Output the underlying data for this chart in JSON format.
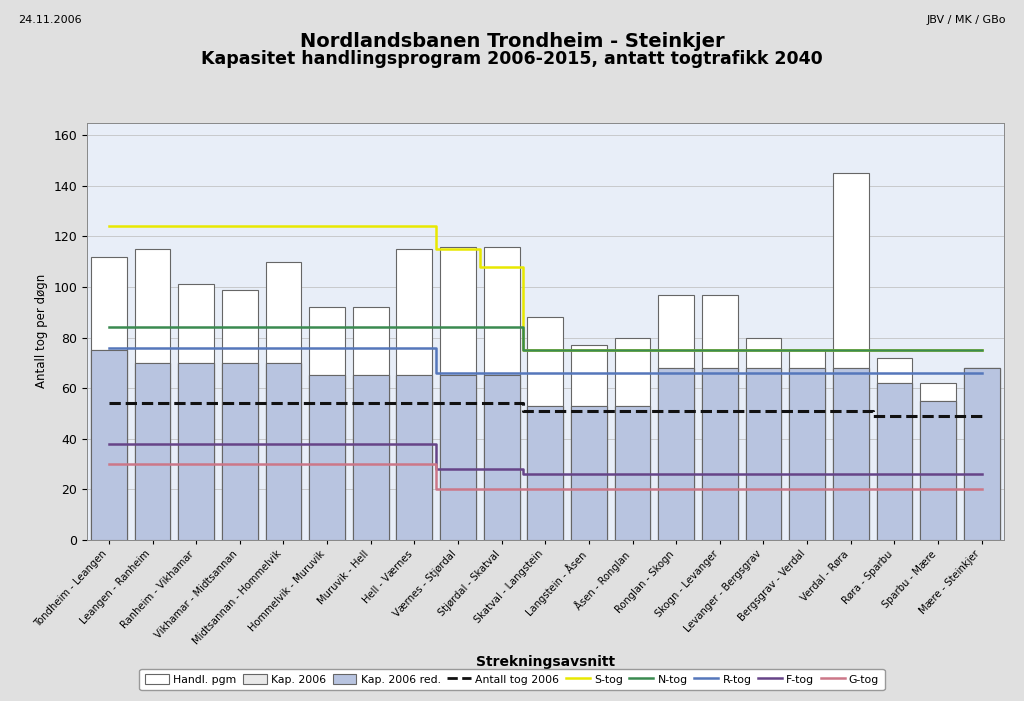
{
  "title_line1": "Nordlandsbanen Trondheim - Steinkjer",
  "title_line2": "Kapasitet handlingsprogram 2006-2015, antatt togtrafikk 2040",
  "date_text": "24.11.2006",
  "ref_text": "JBV / MK / GBo",
  "ylabel": "Antall tog per døgn",
  "xlabel": "Strekningsavsnitt",
  "ylim": [
    0,
    165
  ],
  "yticks": [
    0,
    20,
    40,
    60,
    80,
    100,
    120,
    140,
    160
  ],
  "categories": [
    "Tondheim - Leangen",
    "Leangen - Ranheim",
    "Ranheim - Vikhamar",
    "Vikhamar - Midtsannan",
    "Midtsannan - Hommelvik",
    "Hommelvik - Muruvik",
    "Muruvik - Hell",
    "Hell - Værnes",
    "Værnes - Stjørdal",
    "Stjørdal - Skatval",
    "Skatval - Langstein",
    "Langstein - Åsen",
    "Åsen - Ronglan",
    "Ronglan - Skogn",
    "Skogn - Levanger",
    "Levanger - Bergsgrav",
    "Bergsgrav - Verdal",
    "Verdal - Røra",
    "Røra - Sparbu",
    "Sparbu - Mære",
    "Mære - Steinkjer"
  ],
  "handl_pgm": [
    112,
    115,
    101,
    99,
    110,
    92,
    92,
    115,
    116,
    116,
    88,
    77,
    80,
    97,
    97,
    80,
    75,
    145,
    72,
    62,
    68
  ],
  "kap_2006": [
    75,
    70,
    70,
    70,
    70,
    65,
    65,
    65,
    65,
    65,
    53,
    53,
    53,
    68,
    68,
    68,
    68,
    68,
    62,
    55,
    68
  ],
  "kap_2006_red": [
    75,
    70,
    70,
    70,
    70,
    65,
    65,
    65,
    65,
    65,
    53,
    53,
    53,
    68,
    68,
    68,
    68,
    68,
    62,
    55,
    68
  ],
  "antall_tog_2006": [
    54,
    54,
    54,
    54,
    54,
    54,
    54,
    54,
    54,
    54,
    51,
    51,
    51,
    51,
    51,
    51,
    51,
    51,
    49,
    49,
    49
  ],
  "s_tog": [
    124,
    124,
    124,
    124,
    124,
    124,
    124,
    124,
    115,
    108,
    75,
    75,
    75,
    75,
    75,
    75,
    75,
    75,
    75,
    75,
    75
  ],
  "n_tog": [
    84,
    84,
    84,
    84,
    84,
    84,
    84,
    84,
    84,
    84,
    75,
    75,
    75,
    75,
    75,
    75,
    75,
    75,
    75,
    75,
    75
  ],
  "r_tog": [
    76,
    76,
    76,
    76,
    76,
    76,
    76,
    76,
    66,
    66,
    66,
    66,
    66,
    66,
    66,
    66,
    66,
    66,
    66,
    66,
    66
  ],
  "f_tog": [
    38,
    38,
    38,
    38,
    38,
    38,
    38,
    38,
    28,
    28,
    26,
    26,
    26,
    26,
    26,
    26,
    26,
    26,
    26,
    26,
    26
  ],
  "g_tog": [
    30,
    30,
    30,
    30,
    30,
    30,
    30,
    30,
    20,
    20,
    20,
    20,
    20,
    20,
    20,
    20,
    20,
    20,
    20,
    20,
    20
  ],
  "bar_handl_color": "#ffffff",
  "bar_kap_color": "#e8e8e8",
  "bar_kap_red_color": "#b8c4e0",
  "bar_edge_color": "#666666",
  "antall_color": "#111111",
  "s_tog_color": "#e8e800",
  "n_tog_color": "#3a8a50",
  "r_tog_color": "#5577bb",
  "f_tog_color": "#664488",
  "g_tog_color": "#cc7788",
  "plot_bg_color": "#e8eef8",
  "fig_bg_color": "#e0e0e0"
}
